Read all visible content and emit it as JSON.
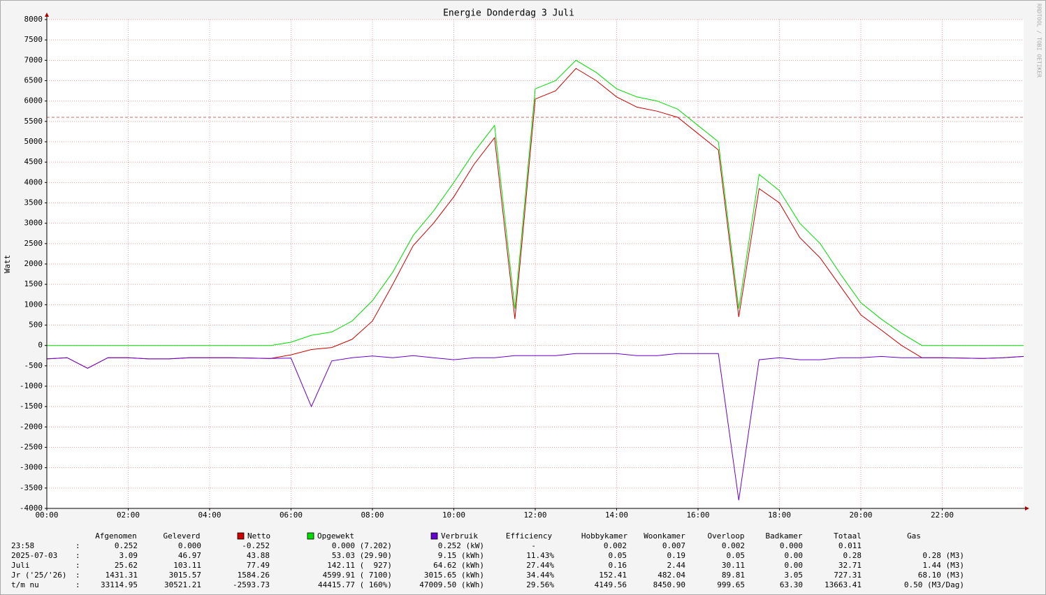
{
  "chart_data": {
    "type": "line",
    "title": "Energie Donderdag 3 Juli",
    "y_label": "Watt",
    "side_text": "RRDTOOL / TOBI OETIKER",
    "x": [
      0,
      0.5,
      1,
      1.5,
      2,
      2.5,
      3,
      3.5,
      4,
      4.5,
      5,
      5.5,
      6,
      6.5,
      7,
      7.5,
      8,
      8.5,
      9,
      9.5,
      10,
      10.5,
      11,
      11.5,
      12,
      12.5,
      13,
      13.5,
      14,
      14.5,
      15,
      15.5,
      16,
      16.5,
      17,
      17.5,
      18,
      18.5,
      19,
      19.5,
      20,
      20.5,
      21,
      21.5,
      22,
      22.5,
      23,
      23.5,
      24
    ],
    "series": [
      {
        "name": "Netto",
        "color": "#cc0000",
        "values": [
          -330,
          -300,
          -560,
          -300,
          -300,
          -330,
          -330,
          -300,
          -300,
          -300,
          -310,
          -320,
          -230,
          -100,
          -50,
          150,
          600,
          1500,
          2450,
          3000,
          3650,
          4450,
          5100,
          650,
          6050,
          6250,
          6800,
          6500,
          6100,
          5850,
          5750,
          5600,
          5200,
          4800,
          700,
          3850,
          3500,
          2650,
          2150,
          1450,
          750,
          380,
          0,
          -300,
          -300,
          -310,
          -320,
          -300,
          -270
        ]
      },
      {
        "name": "Opgewekt",
        "color": "#00dd00",
        "values": [
          0,
          0,
          0,
          0,
          0,
          0,
          0,
          0,
          0,
          0,
          0,
          0,
          80,
          250,
          330,
          600,
          1100,
          1800,
          2700,
          3300,
          4000,
          4750,
          5400,
          900,
          6300,
          6500,
          7000,
          6700,
          6300,
          6100,
          6000,
          5800,
          5400,
          5000,
          900,
          4200,
          3800,
          3000,
          2500,
          1750,
          1050,
          650,
          300,
          0,
          0,
          0,
          0,
          0,
          0
        ]
      },
      {
        "name": "Verbruik",
        "color": "#6600cc",
        "values": [
          -330,
          -300,
          -560,
          -300,
          -300,
          -330,
          -330,
          -300,
          -300,
          -300,
          -310,
          -320,
          -310,
          -1500,
          -380,
          -300,
          -260,
          -300,
          -250,
          -300,
          -350,
          -300,
          -300,
          -250,
          -250,
          -250,
          -200,
          -200,
          -200,
          -250,
          -250,
          -200,
          -200,
          -200,
          -3800,
          -350,
          -300,
          -350,
          -350,
          -300,
          -300,
          -270,
          -300,
          -300,
          -300,
          -310,
          -320,
          -300,
          -270
        ]
      }
    ],
    "reference_line": 5600,
    "reference_color": "#cc6666",
    "xlim": [
      0,
      24
    ],
    "xticks": [
      {
        "value": 0,
        "label": "00:00"
      },
      {
        "value": 2,
        "label": "02:00"
      },
      {
        "value": 4,
        "label": "04:00"
      },
      {
        "value": 6,
        "label": "06:00"
      },
      {
        "value": 8,
        "label": "08:00"
      },
      {
        "value": 10,
        "label": "10:00"
      },
      {
        "value": 12,
        "label": "12:00"
      },
      {
        "value": 14,
        "label": "14:00"
      },
      {
        "value": 16,
        "label": "16:00"
      },
      {
        "value": 18,
        "label": "18:00"
      },
      {
        "value": 20,
        "label": "20:00"
      },
      {
        "value": 22,
        "label": "22:00"
      }
    ],
    "ylim": [
      -4000,
      8000
    ],
    "yticks": [
      -4000,
      -3500,
      -3000,
      -2500,
      -2000,
      -1500,
      -1000,
      -500,
      0,
      500,
      1000,
      1500,
      2000,
      2500,
      3000,
      3500,
      4000,
      4500,
      5000,
      5500,
      6000,
      6500,
      7000,
      7500,
      8000
    ],
    "grid": true
  },
  "table": {
    "separator": ":",
    "header": [
      "Afgenomen",
      "Geleverd",
      "Efficiency",
      "Hobbykamer",
      "Woonkamer",
      "Overloop",
      "Badkamer",
      "Totaal",
      "Gas"
    ],
    "rows": [
      [
        "23:58",
        "0.252",
        "0.000",
        "-0.252",
        "0.000 (7.202)",
        "0.252 (kW)",
        "-",
        "0.002",
        "0.007",
        "0.002",
        "0.000",
        "0.011"
      ],
      [
        "2025-07-03",
        "3.09",
        "46.97",
        "43.88",
        "53.03 (29.90)",
        "9.15 (kWh)",
        "11.43%",
        "0.05",
        "0.19",
        "0.05",
        "0.00",
        "0.28",
        "0.28 (M3)"
      ],
      [
        "Juli",
        "25.62",
        "103.11",
        "77.49",
        "142.11 (  927)",
        "64.62 (kWh)",
        "27.44%",
        "0.16",
        "2.44",
        "30.11",
        "0.00",
        "32.71",
        "1.44 (M3)"
      ],
      [
        "Jr ('25/'26)",
        "1431.31",
        "3015.57",
        "1584.26",
        "4599.91 ( 7100)",
        "3015.65 (kWh)",
        "34.44%",
        "152.41",
        "482.04",
        "89.81",
        "3.05",
        "727.31",
        "68.10 (M3)"
      ],
      [
        "t/m nu",
        "33114.95",
        "30521.21",
        "-2593.73",
        "44415.77 ( 160%)",
        "47009.50 (kWh)",
        "29.56%",
        "4149.56",
        "8450.90",
        "999.65",
        "63.30",
        "13663.41",
        "0.50 (M3/Dag)"
      ]
    ]
  }
}
